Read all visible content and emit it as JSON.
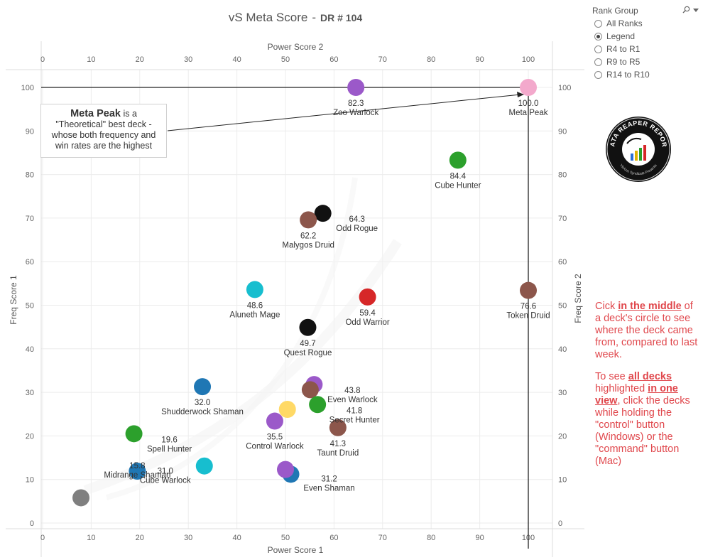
{
  "chart_data": {
    "type": "scatter",
    "title": "vS Meta Score",
    "title_suffix": "DR # 104",
    "xlabel": "Power Score 1",
    "x2label": "Power Score 2",
    "ylabel": "Freq Score 1",
    "y2label": "Freq Score 2",
    "xlim": [
      0,
      105
    ],
    "ylim": [
      -1,
      105
    ],
    "xticks": [
      0,
      10,
      20,
      30,
      40,
      50,
      60,
      70,
      80,
      90,
      100
    ],
    "yticks": [
      0,
      10,
      20,
      30,
      40,
      50,
      60,
      70,
      80,
      90,
      100
    ],
    "grid": true,
    "reference_lines": {
      "x": 100,
      "y": 100
    },
    "points": [
      {
        "name": "Meta Peak",
        "score": "100.0",
        "x": 100,
        "y": 100,
        "color": "#f3a9cc"
      },
      {
        "name": "Zoo Warlock",
        "score": "82.3",
        "x": 64.5,
        "y": 100,
        "color": "#9b59c9"
      },
      {
        "name": "Cube Hunter",
        "score": "84.4",
        "x": 85.5,
        "y": 83.3,
        "color": "#2ca02c"
      },
      {
        "name": "Odd Rogue",
        "score": "64.3",
        "x": 57.7,
        "y": 71.1,
        "color": "#111111"
      },
      {
        "name": "Malygos Druid",
        "score": "62.2",
        "x": 54.7,
        "y": 69.6,
        "color": "#8c564b"
      },
      {
        "name": "Aluneth Mage",
        "score": "48.6",
        "x": 43.7,
        "y": 53.6,
        "color": "#17becf"
      },
      {
        "name": "Odd Warrior",
        "score": "59.4",
        "x": 66.9,
        "y": 51.9,
        "color": "#d62728"
      },
      {
        "name": "Token Druid",
        "score": "76.6",
        "x": 100,
        "y": 53.4,
        "color": "#8c564b"
      },
      {
        "name": "Quest Rogue",
        "score": "49.7",
        "x": 54.6,
        "y": 44.9,
        "color": "#111111"
      },
      {
        "name": "Shudderwock Shaman",
        "score": "32.0",
        "x": 32.9,
        "y": 31.3,
        "color": "#1f77b4"
      },
      {
        "name": "Even Warlock",
        "score": "43.8",
        "x": 55.9,
        "y": 31.8,
        "color": "#9b59c9"
      },
      {
        "name": "",
        "score": "",
        "x": 55.1,
        "y": 30.6,
        "color": "#8c564b"
      },
      {
        "name": "Secret Hunter",
        "score": "41.8",
        "x": 56.6,
        "y": 27.2,
        "color": "#2ca02c"
      },
      {
        "name": "",
        "score": "",
        "x": 50.4,
        "y": 26.1,
        "color": "#ffd966"
      },
      {
        "name": "Control Warlock",
        "score": "35.5",
        "x": 47.8,
        "y": 23.4,
        "color": "#9b59c9"
      },
      {
        "name": "Taunt Druid",
        "score": "41.3",
        "x": 60.8,
        "y": 21.9,
        "color": "#8c564b"
      },
      {
        "name": "Spell Hunter",
        "score": "19.6",
        "x": 18.8,
        "y": 20.5,
        "color": "#2ca02c"
      },
      {
        "name": "Cube Warlock",
        "score": "31.0",
        "x": 33.3,
        "y": 13.1,
        "color": "#17becf"
      },
      {
        "name": "Even Shaman",
        "score": "31.2",
        "x": 51.1,
        "y": 11.2,
        "color": "#1f77b4"
      },
      {
        "name": "",
        "score": "",
        "x": 50,
        "y": 12.3,
        "color": "#9b59c9"
      },
      {
        "name": "Midrange Shaman",
        "score": "15.8",
        "x": 19.5,
        "y": 11.9,
        "color": "#1f77b4"
      },
      {
        "name": "",
        "score": "",
        "x": 7.9,
        "y": 5.8,
        "color": "#7f7f7f"
      }
    ]
  },
  "callout": {
    "bold": "Meta Peak",
    "rest_first": " is a",
    "line2": "\"Theoretical\" best deck -",
    "line3": "whose both frequency and",
    "line4": "win rates are the highest"
  },
  "filter": {
    "title": "Rank Group",
    "search_icon": "magnifier-icon",
    "menu_icon": "dropdown-caret-icon",
    "options": [
      {
        "label": "All Ranks",
        "checked": false
      },
      {
        "label": "Legend",
        "checked": true
      },
      {
        "label": "R4 to R1",
        "checked": false
      },
      {
        "label": "R9 to R5",
        "checked": false
      },
      {
        "label": "R14 to R10",
        "checked": false
      }
    ]
  },
  "logo": {
    "text": "DATA REAPER REPORT",
    "subtext": "Vicious Syndicate Presents"
  },
  "notes": {
    "p1_a": "Cick ",
    "p1_b": "in the middle",
    "p1_c": " of a deck's circle to see where the deck came from, compared to last week.",
    "p2_a": "To see ",
    "p2_b": "all decks ",
    "p2_c": " highlighted ",
    "p2_d": "in one view",
    "p2_e": ", click the decks while holding the \"control\" button (Windows) or the \"command\" button (Mac)"
  }
}
